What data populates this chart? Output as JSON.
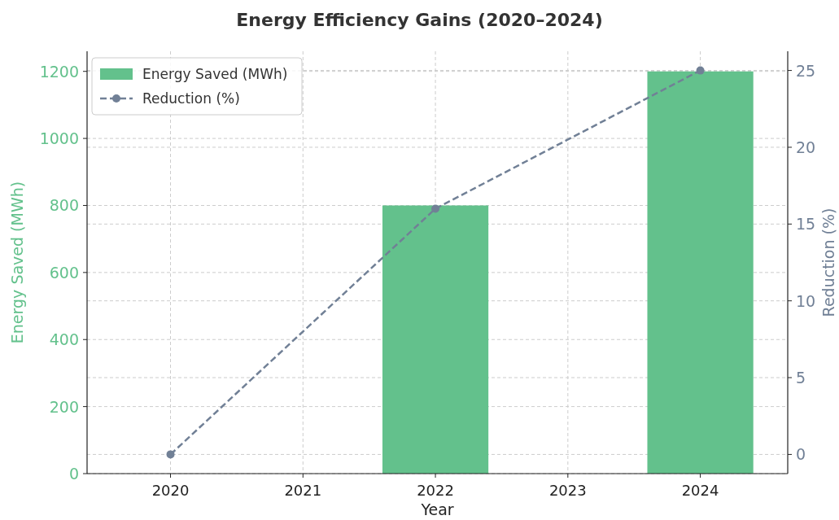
{
  "chart_data": {
    "type": "bar",
    "title": "Energy Efficiency Gains (2020–2024)",
    "xlabel": "Year",
    "ylabel": "Energy Saved (MWh)",
    "y2label": "Reduction (%)",
    "series": [
      {
        "name": "Energy Saved (MWh)",
        "color": "#63c18c",
        "x": [
          2022,
          2024
        ],
        "values": [
          800,
          1200
        ]
      },
      {
        "name": "Reduction (%)",
        "type": "line",
        "axis": "y2",
        "color": "#718096",
        "x": [
          2020,
          2022,
          2024
        ],
        "values": [
          0,
          16,
          25
        ]
      }
    ],
    "xlim": [
      2019.37,
      2024.66
    ],
    "xticks": [
      2020,
      2021,
      2022,
      2023,
      2024
    ],
    "ylim": [
      0,
      1260
    ],
    "yticks": [
      0,
      200,
      400,
      600,
      800,
      1000,
      1200
    ],
    "y2lim": [
      -1.25,
      26.25
    ],
    "y2ticks": [
      0,
      5,
      10,
      15,
      20,
      25
    ],
    "grid": true,
    "legend": "top left",
    "marker": "circle",
    "line_style": "dashed"
  }
}
